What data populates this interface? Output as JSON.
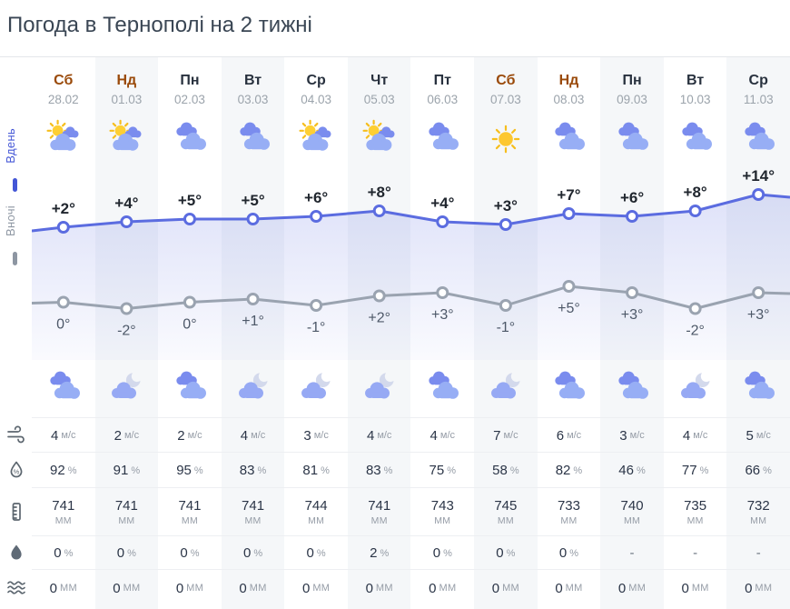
{
  "page": {
    "title": "Погода в Тернополі на 2 тижні"
  },
  "legend": {
    "day": "Вдень",
    "night": "Вночі"
  },
  "columns": [
    {
      "day": "Сб",
      "date": "28.02",
      "weekend": true,
      "day_icon": "sun-cloud",
      "night_icon": "cloudy",
      "wind": "4",
      "humidity": "92",
      "pressure": "741",
      "precip_prob": "0",
      "precip_mm": "0"
    },
    {
      "day": "Нд",
      "date": "01.03",
      "weekend": true,
      "day_icon": "sun-cloud",
      "night_icon": "moon-cloud",
      "wind": "2",
      "humidity": "91",
      "pressure": "741",
      "precip_prob": "0",
      "precip_mm": "0"
    },
    {
      "day": "Пн",
      "date": "02.03",
      "weekend": false,
      "day_icon": "cloudy",
      "night_icon": "cloudy",
      "wind": "2",
      "humidity": "95",
      "pressure": "741",
      "precip_prob": "0",
      "precip_mm": "0"
    },
    {
      "day": "Вт",
      "date": "03.03",
      "weekend": false,
      "day_icon": "cloudy",
      "night_icon": "moon-cloud",
      "wind": "4",
      "humidity": "83",
      "pressure": "741",
      "precip_prob": "0",
      "precip_mm": "0"
    },
    {
      "day": "Ср",
      "date": "04.03",
      "weekend": false,
      "day_icon": "sun-cloud",
      "night_icon": "moon-cloud",
      "wind": "3",
      "humidity": "81",
      "pressure": "744",
      "precip_prob": "0",
      "precip_mm": "0"
    },
    {
      "day": "Чт",
      "date": "05.03",
      "weekend": false,
      "day_icon": "sun-cloud",
      "night_icon": "moon-cloud",
      "wind": "4",
      "humidity": "83",
      "pressure": "741",
      "precip_prob": "2",
      "precip_mm": "0"
    },
    {
      "day": "Пт",
      "date": "06.03",
      "weekend": false,
      "day_icon": "cloudy",
      "night_icon": "cloudy",
      "wind": "4",
      "humidity": "75",
      "pressure": "743",
      "precip_prob": "0",
      "precip_mm": "0"
    },
    {
      "day": "Сб",
      "date": "07.03",
      "weekend": true,
      "day_icon": "sun",
      "night_icon": "moon-cloud",
      "wind": "7",
      "humidity": "58",
      "pressure": "745",
      "precip_prob": "0",
      "precip_mm": "0"
    },
    {
      "day": "Нд",
      "date": "08.03",
      "weekend": true,
      "day_icon": "cloudy",
      "night_icon": "cloudy",
      "wind": "6",
      "humidity": "82",
      "pressure": "733",
      "precip_prob": "0",
      "precip_mm": "0"
    },
    {
      "day": "Пн",
      "date": "09.03",
      "weekend": false,
      "day_icon": "cloudy",
      "night_icon": "cloudy",
      "wind": "3",
      "humidity": "46",
      "pressure": "740",
      "precip_prob": "-",
      "precip_mm": "0"
    },
    {
      "day": "Вт",
      "date": "10.03",
      "weekend": false,
      "day_icon": "cloudy",
      "night_icon": "moon-cloud",
      "wind": "4",
      "humidity": "77",
      "pressure": "735",
      "precip_prob": "-",
      "precip_mm": "0"
    },
    {
      "day": "Ср",
      "date": "11.03",
      "weekend": false,
      "day_icon": "cloudy",
      "night_icon": "cloudy",
      "wind": "5",
      "humidity": "66",
      "pressure": "732",
      "precip_prob": "-",
      "precip_mm": "0"
    }
  ],
  "stat_rows": [
    {
      "key": "wind",
      "icon": "wind-icon",
      "unit": "м/с",
      "unit_style": "inline"
    },
    {
      "key": "humidity",
      "icon": "humidity-icon",
      "unit": "%",
      "unit_style": "inline"
    },
    {
      "key": "pressure",
      "icon": "pressure-icon",
      "unit": "мм",
      "unit_style": "below-upper"
    },
    {
      "key": "precip_prob",
      "icon": "precip-probability-icon",
      "unit": "%",
      "unit_style": "inline"
    },
    {
      "key": "precip_mm",
      "icon": "precip-amount-icon",
      "unit": "мм",
      "unit_style": "inline-upper"
    }
  ],
  "chart_data": {
    "type": "line",
    "x": [
      "28.02",
      "01.03",
      "02.03",
      "03.03",
      "04.03",
      "05.03",
      "06.03",
      "07.03",
      "08.03",
      "09.03",
      "10.03",
      "11.03"
    ],
    "series": [
      {
        "name": "Вдень",
        "values": [
          2,
          4,
          5,
          5,
          6,
          8,
          4,
          3,
          7,
          6,
          8,
          14
        ],
        "labels": [
          "+2°",
          "+4°",
          "+5°",
          "+5°",
          "+6°",
          "+8°",
          "+4°",
          "+3°",
          "+7°",
          "+6°",
          "+8°",
          "+14°"
        ],
        "color": "#5b6ce0"
      },
      {
        "name": "Вночі",
        "values": [
          0,
          -2,
          0,
          1,
          -1,
          2,
          3,
          -1,
          5,
          3,
          -2,
          3
        ],
        "labels": [
          "0°",
          "-2°",
          "0°",
          "+1°",
          "-1°",
          "+2°",
          "+3°",
          "-1°",
          "+5°",
          "+3°",
          "-2°",
          "+3°"
        ],
        "color": "#9aa3b0"
      }
    ],
    "legend_position": "left",
    "grid": false
  },
  "colors": {
    "day_line": "#5b6ce0",
    "night_line": "#9aa3b0",
    "weekend_text": "#9a4a0a",
    "weekday_text": "#28313e",
    "date_text": "#9ba3ab",
    "stripe": "#f5f7f9",
    "value_text": "#2b3547",
    "unit_text": "#959ca6"
  }
}
